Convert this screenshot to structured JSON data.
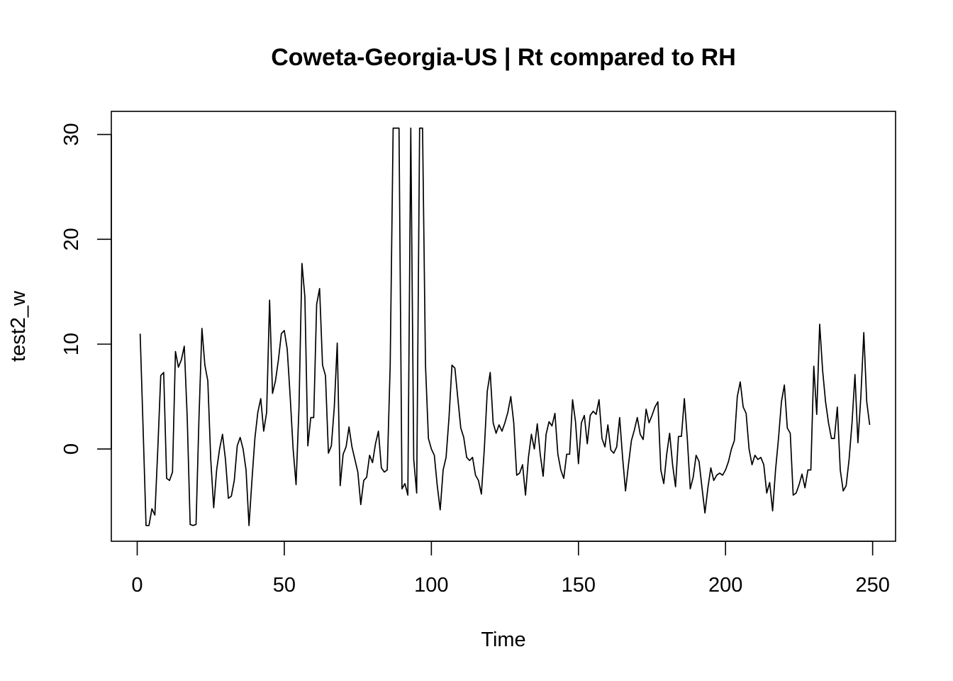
{
  "chart_data": {
    "type": "line",
    "title": "Coweta-Georgia-US | Rt compared to RH",
    "xlabel": "Time",
    "ylabel": "test2_w",
    "xlim": [
      -8.8,
      257.8
    ],
    "ylim": [
      -8.8,
      32.2
    ],
    "xticks": [
      0,
      50,
      100,
      150,
      200,
      250
    ],
    "yticks": [
      0,
      10,
      20,
      30
    ],
    "grid": false,
    "legend": "none",
    "line_color": "#000000",
    "x_start": 1,
    "y": [
      11,
      2,
      -7.3,
      -7.3,
      -5.7,
      -6.3,
      0,
      7,
      7.3,
      -2.8,
      -3,
      -2.2,
      9.3,
      7.8,
      8.5,
      9.8,
      3,
      -7.2,
      -7.3,
      -7.2,
      3,
      11.5,
      8,
      6.5,
      -1,
      -5.6,
      -2,
      0,
      1.4,
      -1,
      -4.7,
      -4.5,
      -3,
      0.3,
      1.1,
      0,
      -2,
      -7.3,
      -3,
      1,
      3.5,
      4.8,
      1.7,
      3.5,
      14.2,
      5.3,
      6.5,
      8.5,
      11,
      11.3,
      9.5,
      5,
      0,
      -3.4,
      4,
      17.7,
      14.5,
      0.3,
      3,
      3,
      13.8,
      15.3,
      8,
      7,
      -0.4,
      0.3,
      4,
      10.1,
      -3.5,
      -0.5,
      0.2,
      2.1,
      0.2,
      -1,
      -2.2,
      -5.3,
      -3,
      -2.7,
      -0.6,
      -1.3,
      0.5,
      1.7,
      -1.8,
      -2.2,
      -2,
      8,
      30.6,
      30.6,
      30.6,
      -3.8,
      -3.3,
      -4.4,
      30.6,
      -1,
      -4.2,
      30.6,
      30.6,
      8,
      1,
      0,
      -0.6,
      -3.5,
      -5.8,
      -2,
      -0.8,
      3,
      8,
      7.7,
      4.8,
      2,
      1.1,
      -0.8,
      -1.1,
      -0.8,
      -2.5,
      -3,
      -4.3,
      0,
      5.5,
      7.3,
      2.5,
      1.5,
      2.3,
      1.7,
      2.5,
      3.5,
      5,
      2.5,
      -2.5,
      -2.3,
      -1.5,
      -4.4,
      -0.8,
      1.4,
      0,
      2.4,
      -0.5,
      -2.6,
      1.4,
      2.6,
      2.2,
      3.4,
      -0.5,
      -2,
      -2.8,
      -0.5,
      -0.5,
      4.7,
      2.6,
      -1.4,
      2.5,
      3.2,
      0.5,
      3.2,
      3.6,
      3.3,
      4.7,
      1,
      0.2,
      2.3,
      -0.1,
      -0.4,
      0.2,
      3,
      -0.8,
      -4,
      -1.5,
      0.8,
      1.8,
      3,
      1.4,
      0.9,
      3.8,
      2.5,
      3.2,
      4,
      4.5,
      -2,
      -3.3,
      -0.5,
      1.5,
      -1.5,
      -3.6,
      1.2,
      1.2,
      4.8,
      1,
      -3.8,
      -2.7,
      -0.6,
      -1.2,
      -3.7,
      -6.1,
      -3.7,
      -1.8,
      -3,
      -2.5,
      -2.3,
      -2.5,
      -2,
      -1.2,
      0,
      0.8,
      5,
      6.4,
      4,
      3.4,
      0,
      -1.5,
      -0.6,
      -1,
      -0.8,
      -1.5,
      -4.2,
      -3.2,
      -5.9,
      -2,
      1,
      4.5,
      6.1,
      2,
      1.5,
      -4.4,
      -4.2,
      -3.4,
      -2.4,
      -3.7,
      -2,
      -2,
      7.9,
      3.3,
      11.9,
      7.5,
      4.5,
      2.5,
      1,
      1,
      4,
      -2,
      -4,
      -3.5,
      -1,
      2.5,
      7.1,
      0.6,
      5,
      11.1,
      4.5,
      2.3
    ]
  }
}
